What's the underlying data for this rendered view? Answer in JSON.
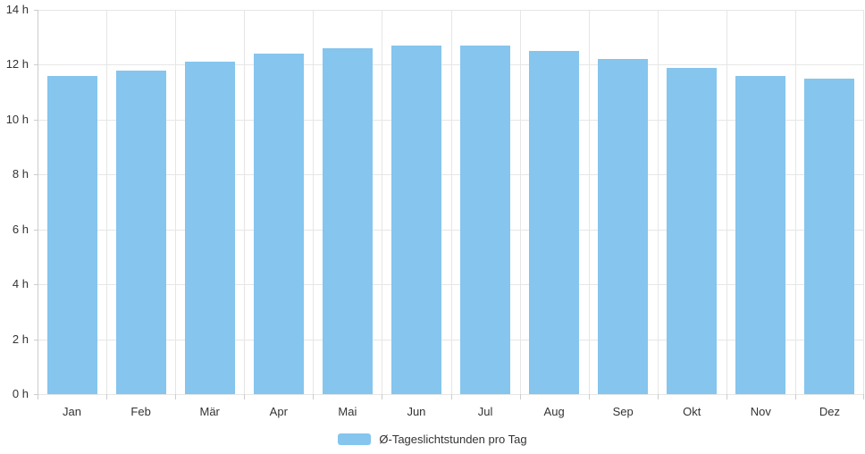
{
  "chart_data": {
    "type": "bar",
    "categories": [
      "Jan",
      "Feb",
      "Mär",
      "Apr",
      "Mai",
      "Jun",
      "Jul",
      "Aug",
      "Sep",
      "Okt",
      "Nov",
      "Dez"
    ],
    "values": [
      11.6,
      11.8,
      12.1,
      12.4,
      12.6,
      12.7,
      12.7,
      12.5,
      12.2,
      11.9,
      11.6,
      11.5
    ],
    "series_name": "Ø-Tageslichtstunden pro Tag",
    "title": "",
    "xlabel": "",
    "ylabel": "",
    "ylim": [
      0,
      14
    ],
    "y_tick_step": 2,
    "y_tick_labels": [
      "0 h",
      "2 h",
      "4 h",
      "6 h",
      "8 h",
      "10 h",
      "12 h",
      "14 h"
    ],
    "grid": true,
    "legend_position": "bottom",
    "colors": {
      "bar": "#85C5EE",
      "gridline": "#E6E6E6",
      "axis": "#CCCCCC",
      "text": "#333333",
      "background": "#FFFFFF"
    }
  }
}
